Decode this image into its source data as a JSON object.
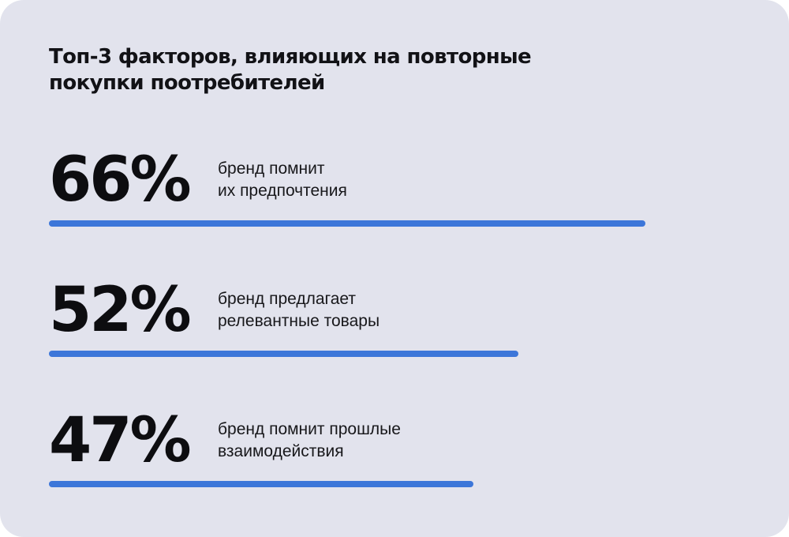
{
  "page": {
    "title": "Топ-3 факторов, влияющих на повторные\nпокупки поотребителей"
  },
  "stats": [
    {
      "value_display": "66%",
      "percent": 66,
      "label": "бренд помнит\nих предпочтения"
    },
    {
      "value_display": "52%",
      "percent": 52,
      "label": "бренд предлагает\nрелевантные товары"
    },
    {
      "value_display": "47%",
      "percent": 47,
      "label": "бренд помнит прошлые\nвзаимодействия"
    }
  ],
  "colors": {
    "card_bg": "#e2e3ed",
    "bar_blue": "#3c76d9",
    "text_dark": "#121216"
  },
  "chart_data": {
    "type": "bar",
    "orientation": "horizontal",
    "title": "Топ-3 факторов, влияющих на повторные покупки поотребителей",
    "categories": [
      "бренд помнит их предпочтения",
      "бренд предлагает релевантные товары",
      "бренд помнит прошлые взаимодействия"
    ],
    "values": [
      66,
      52,
      47
    ],
    "unit": "%",
    "xlim": [
      0,
      66
    ],
    "grid": false,
    "legend": false,
    "bar_color": "#3c76d9",
    "value_labels": [
      "66%",
      "52%",
      "47%"
    ]
  }
}
